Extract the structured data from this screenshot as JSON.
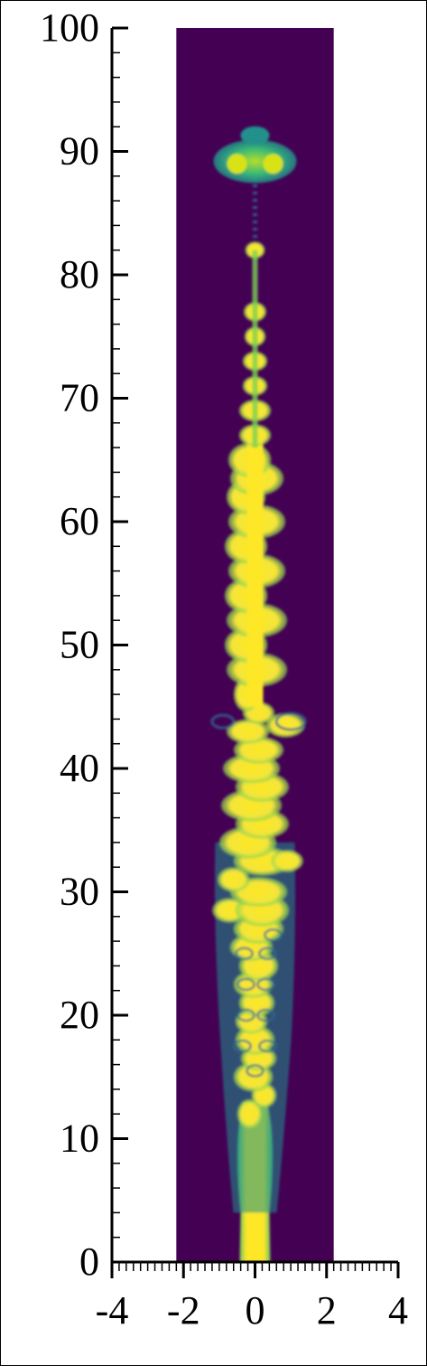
{
  "chart_data": {
    "type": "heatmap",
    "title": "",
    "xlabel": "",
    "ylabel": "",
    "xlim": [
      -4,
      4
    ],
    "ylim": [
      0,
      100
    ],
    "x_ticks": [
      "-4",
      "-2",
      "0",
      "2",
      "4"
    ],
    "y_ticks": [
      "0",
      "10",
      "20",
      "30",
      "40",
      "50",
      "60",
      "70",
      "80",
      "90",
      "100"
    ],
    "domain_x": [
      -2.2,
      2.2
    ],
    "domain_y": [
      0,
      100
    ],
    "colors": {
      "background": "#440154",
      "low": "#21918c",
      "mid": "#5ec962",
      "high": "#fde725"
    }
  }
}
